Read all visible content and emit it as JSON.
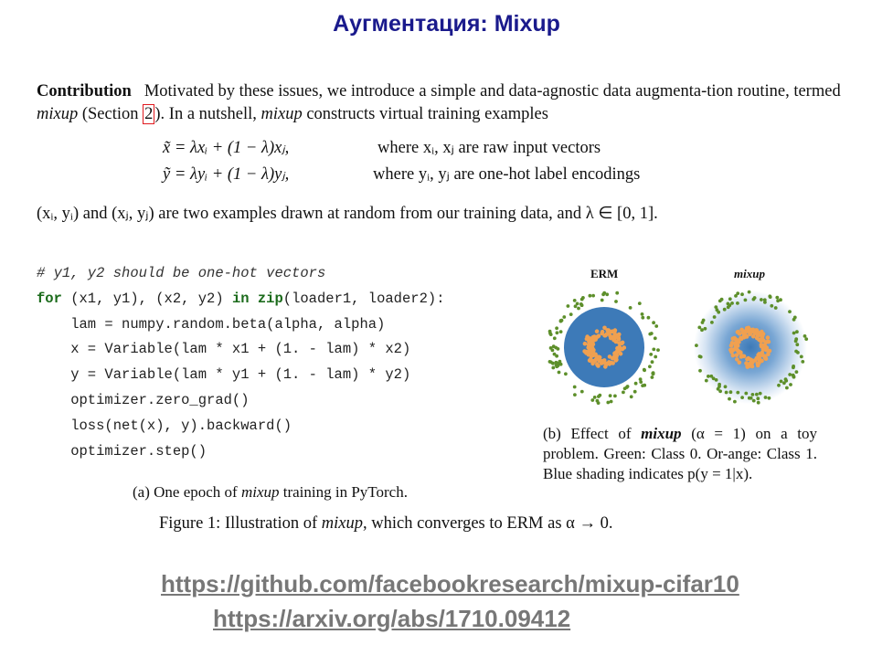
{
  "title": "Аугментация: Mixup",
  "paragraph1": {
    "label": "Contribution",
    "text_a": "Motivated by these issues, we introduce a simple and data-agnostic data augmenta-tion routine, termed ",
    "term1": "mixup",
    "text_b": " (Section ",
    "section_ref": "2",
    "text_c": "). In a nutshell, ",
    "term2": "mixup",
    "text_d": " constructs virtual training examples"
  },
  "equations": [
    {
      "formula": "x̃ = λxᵢ + (1 − λ)xⱼ,",
      "where": "where xᵢ, xⱼ are raw input vectors"
    },
    {
      "formula": "ỹ = λyᵢ + (1 − λ)yⱼ,",
      "where": "where yᵢ, yⱼ are one-hot label encodings"
    }
  ],
  "paragraph2": "(xᵢ, yᵢ) and (xⱼ, yⱼ) are two examples drawn at random from our training data, and λ ∈ [0, 1].",
  "code": {
    "comment": "# y1, y2 should be one-hot vectors",
    "for_kw": "for",
    "for_a": " (x1, y1), (x2, y2) ",
    "in_kw": "in",
    "zip_kw": "zip",
    "for_b": "(loader1, loader2):",
    "lines": [
      "    lam = numpy.random.beta(alpha, alpha)",
      "    x = Variable(lam * x1 + (1. - lam) * x2)",
      "    y = Variable(lam * y1 + (1. - lam) * y2)",
      "    optimizer.zero_grad()",
      "    loss(net(x), y).backward()",
      "    optimizer.step()"
    ]
  },
  "caption_a": {
    "pre": "(a) One epoch of ",
    "term": "mixup",
    "post": " training in PyTorch."
  },
  "caption_b": {
    "pre": "(b) Effect of ",
    "term": "mixup",
    "post": " (α = 1) on a toy problem. Green: Class 0. Or-ange: Class 1. Blue shading indicates p(y = 1|x)."
  },
  "figure_caption": {
    "pre": "Figure 1: Illustration of ",
    "term": "mixup",
    "post": ", which converges to ERM as α → 0."
  },
  "plot_labels": {
    "erm": "ERM",
    "mixup": "mixup"
  },
  "links": [
    "https://github.com/facebookresearch/mixup-cifar10",
    "https://arxiv.org/abs/1710.09412"
  ],
  "colors": {
    "title": "#1a1a8c",
    "green": "#5d8f2a",
    "orange": "#f0a050",
    "blue": "#3d7ab8",
    "ref_box": "#e0191e"
  }
}
